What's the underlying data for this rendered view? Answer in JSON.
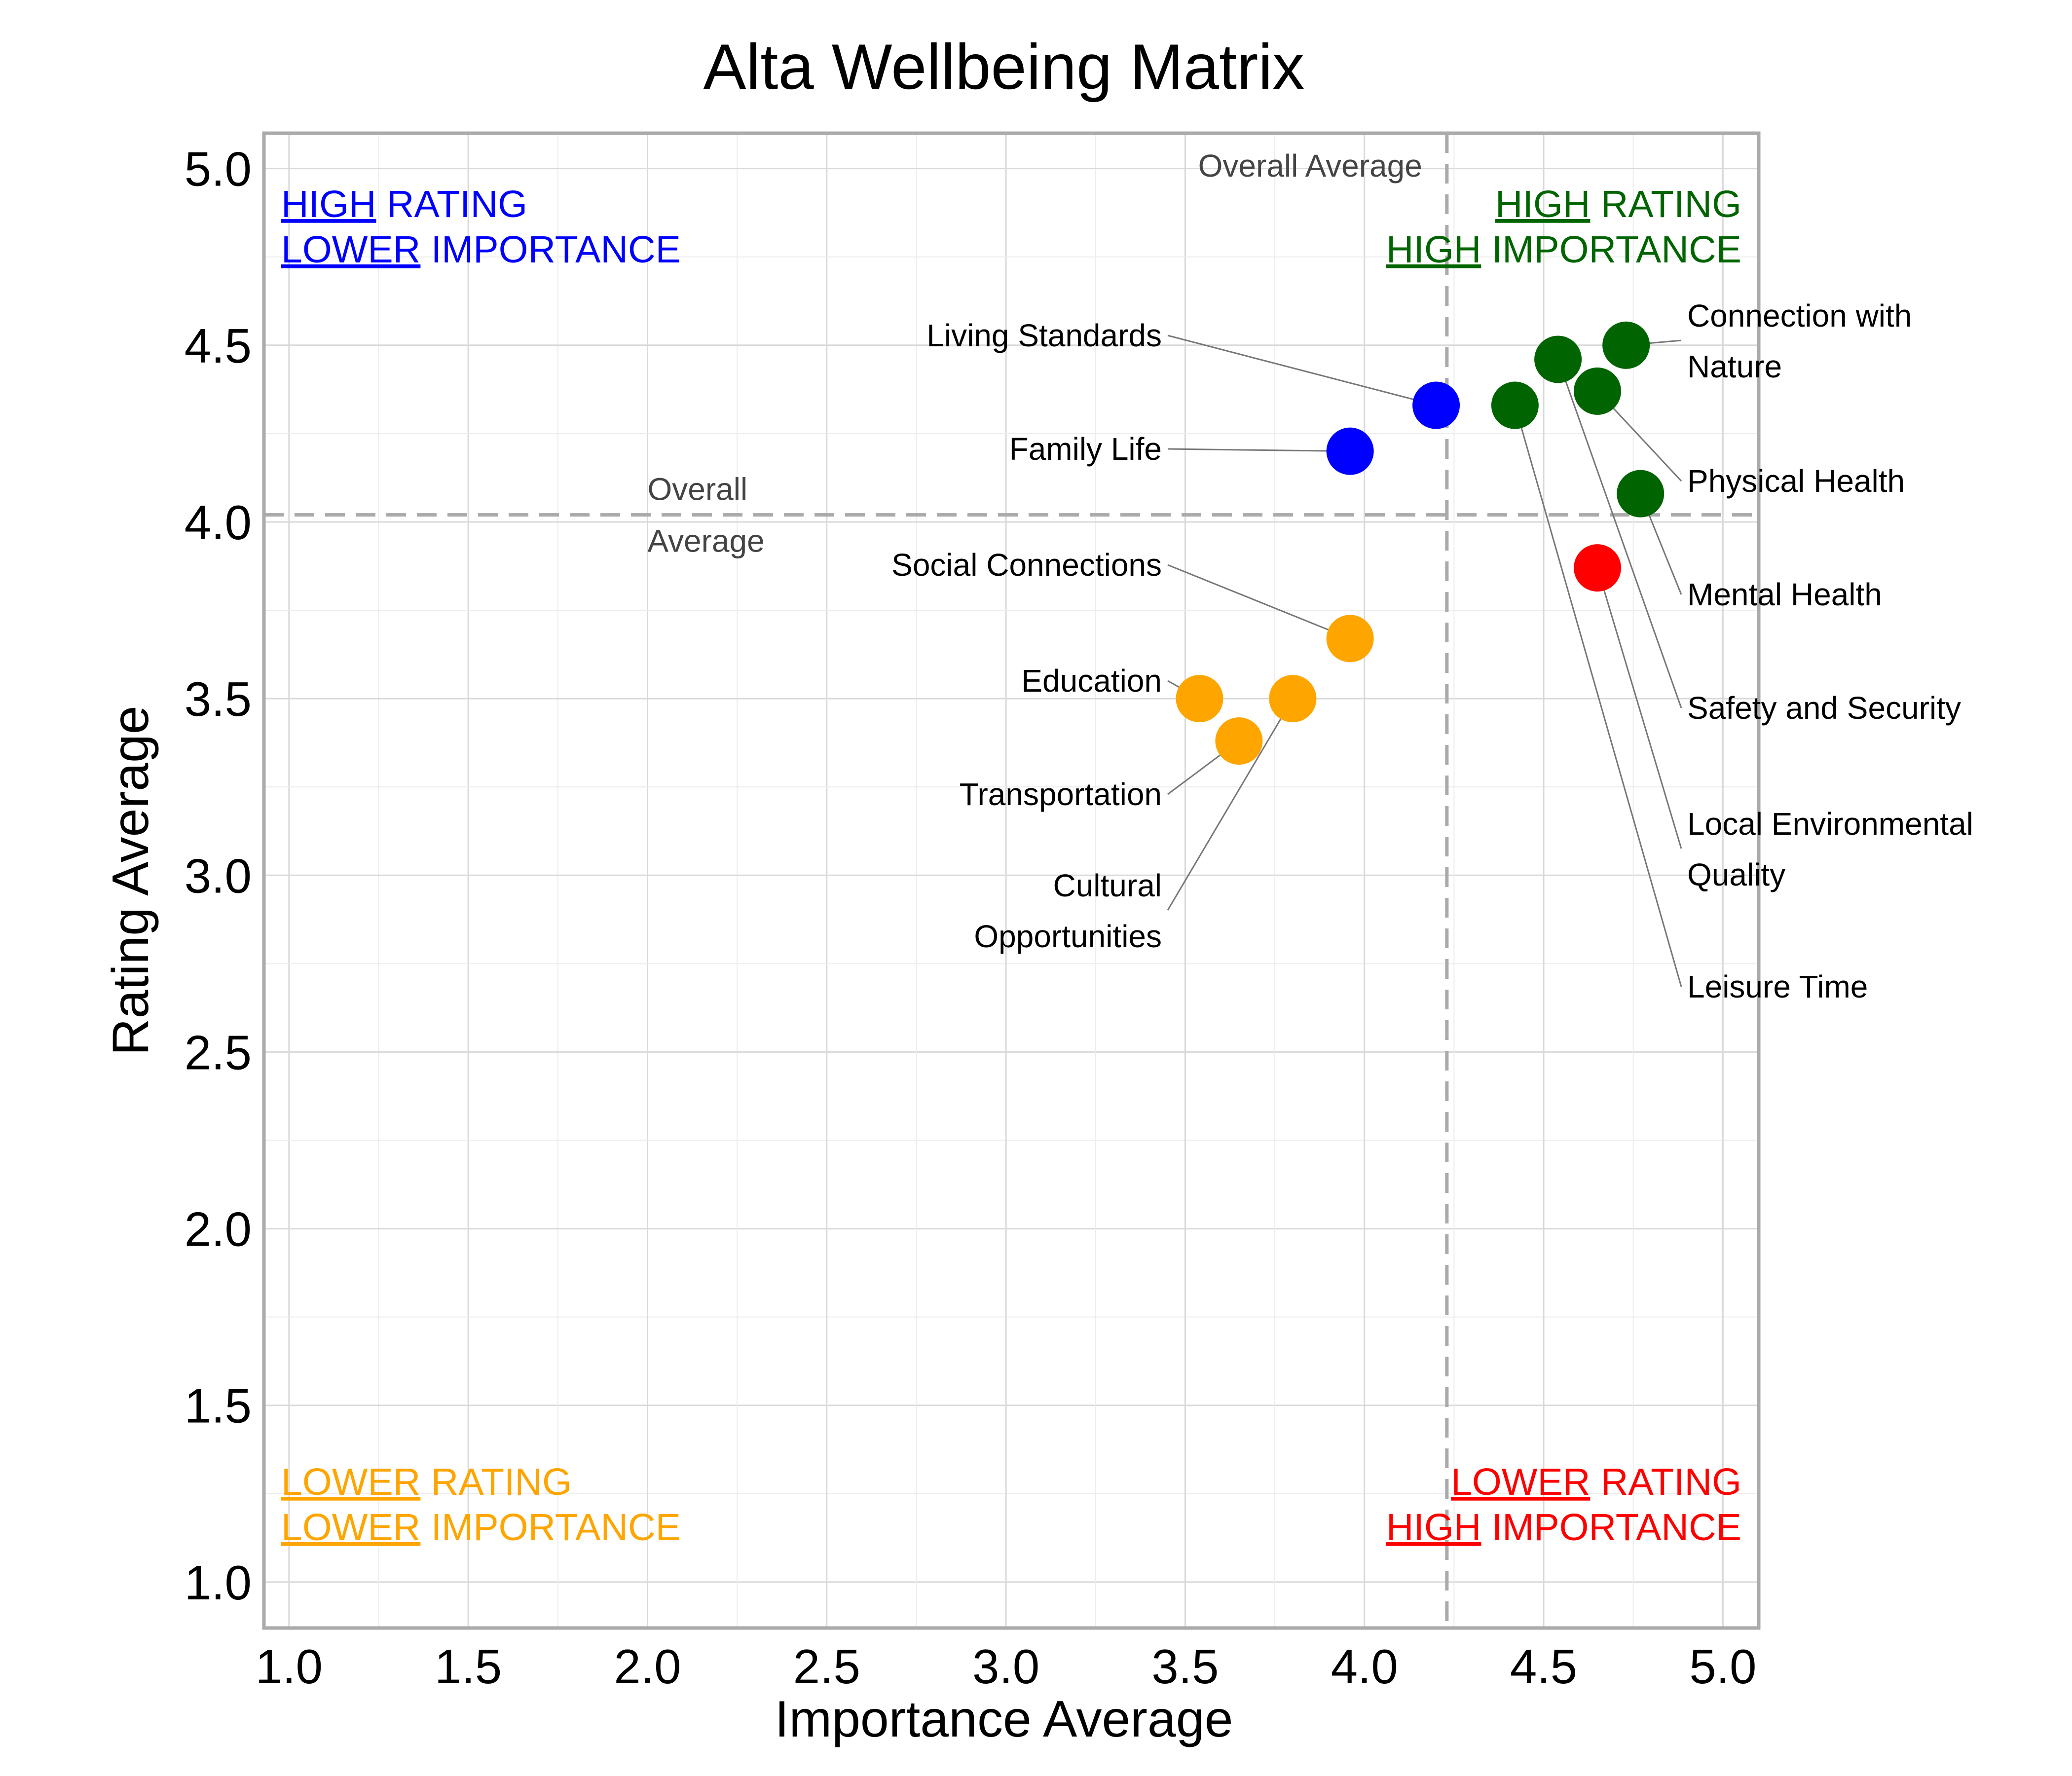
{
  "chart_data": {
    "type": "scatter",
    "title": "Alta Wellbeing Matrix",
    "xlabel": "Importance Average",
    "ylabel": "Rating Average",
    "xlim": [
      0.93,
      5.1
    ],
    "ylim": [
      0.87,
      5.1
    ],
    "x_ticks": [
      "1.0",
      "1.5",
      "2.0",
      "2.5",
      "3.0",
      "3.5",
      "4.0",
      "4.5",
      "5.0"
    ],
    "y_ticks": [
      "1.0",
      "1.5",
      "2.0",
      "2.5",
      "3.0",
      "3.5",
      "4.0",
      "4.5",
      "5.0"
    ],
    "grid": true,
    "overall_average": {
      "x": 4.23,
      "y": 4.02,
      "label": "Overall Average",
      "label_wrapped": [
        "Overall",
        "Average"
      ]
    },
    "quadrants": {
      "top_left": {
        "line1_u": "HIGH",
        "line1_rest": " RATING",
        "line2_u": "LOWER",
        "line2_rest": " IMPORTANCE",
        "color": "#0000ff"
      },
      "top_right": {
        "line1_u": "HIGH",
        "line1_rest": " RATING",
        "line2_u": "HIGH",
        "line2_rest": " IMPORTANCE",
        "color": "#006400"
      },
      "bottom_left": {
        "line1_u": "LOWER",
        "line1_rest": " RATING",
        "line2_u": "LOWER",
        "line2_rest": " IMPORTANCE",
        "color": "#ffa500"
      },
      "bottom_right": {
        "line1_u": "LOWER",
        "line1_rest": " RATING",
        "line2_u": "HIGH",
        "line2_rest": " IMPORTANCE",
        "color": "#ff0000"
      }
    },
    "points": [
      {
        "name": "Living Standards",
        "x": 4.2,
        "y": 4.33,
        "color": "#0000ff",
        "side": "left"
      },
      {
        "name": "Family Life",
        "x": 3.96,
        "y": 4.2,
        "color": "#0000ff",
        "side": "left"
      },
      {
        "name": "Social Connections",
        "x": 3.96,
        "y": 3.67,
        "color": "#ffa500",
        "side": "left"
      },
      {
        "name": "Education",
        "x": 3.54,
        "y": 3.5,
        "color": "#ffa500",
        "side": "left"
      },
      {
        "name": "Transportation",
        "x": 3.65,
        "y": 3.38,
        "color": "#ffa500",
        "side": "left"
      },
      {
        "name": "Cultural Opportunities",
        "x": 3.8,
        "y": 3.5,
        "color": "#ffa500",
        "side": "left"
      },
      {
        "name": "Connection with Nature",
        "x": 4.73,
        "y": 4.5,
        "color": "#006400",
        "side": "right"
      },
      {
        "name": "Physical Health",
        "x": 4.65,
        "y": 4.37,
        "color": "#006400",
        "side": "right"
      },
      {
        "name": "Mental Health",
        "x": 4.77,
        "y": 4.08,
        "color": "#006400",
        "side": "right"
      },
      {
        "name": "Safety and Security",
        "x": 4.54,
        "y": 4.46,
        "color": "#006400",
        "side": "right"
      },
      {
        "name": "Local Environmental Quality",
        "x": 4.65,
        "y": 3.87,
        "color": "#ff0000",
        "side": "right"
      },
      {
        "name": "Leisure Time",
        "x": 4.42,
        "y": 4.33,
        "color": "#006400",
        "side": "right"
      }
    ]
  }
}
